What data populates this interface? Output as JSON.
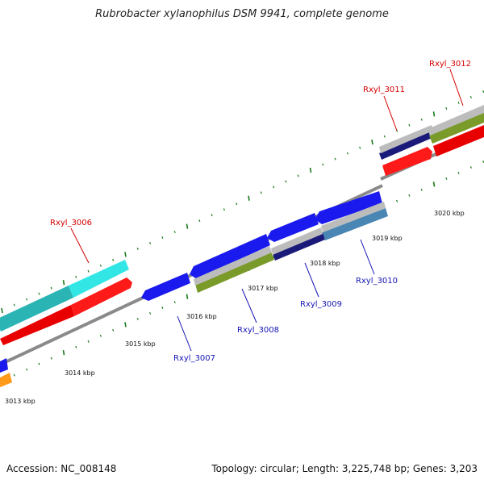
{
  "title": "Rubrobacter xylanophilus DSM 9941, complete genome",
  "footer": {
    "accession": "Accession: NC_008148",
    "stats": "Topology: circular; Length: 3,225,748 bp; Genes: 3,203"
  },
  "colors": {
    "backbone": "#8a8a8a",
    "tick": "#1a7a1a",
    "label_forward": "#d40000",
    "label_reverse": "#1414b4",
    "forward_cds": "#ff1a1a",
    "reverse_cds": "#1a1aee",
    "cyan_feature": "#33e6e6",
    "orange_feature": "#ff9a1a",
    "olive_feature": "#7a9a2a",
    "steel_feature": "#4a86b4",
    "grey_feature": "#bcbcbc",
    "navy_feature": "#1a1a7a"
  },
  "scale": {
    "unit": "kbp",
    "labels": [
      "3013 kbp",
      "3014 kbp",
      "3015 kbp",
      "3016 kbp",
      "3017 kbp",
      "3018 kbp",
      "3019 kbp",
      "3020 kbp"
    ]
  },
  "genes": [
    {
      "name": "Rxyl_3006",
      "strand": "forward"
    },
    {
      "name": "Rxyl_3007",
      "strand": "reverse"
    },
    {
      "name": "Rxyl_3008",
      "strand": "reverse"
    },
    {
      "name": "Rxyl_3009",
      "strand": "reverse"
    },
    {
      "name": "Rxyl_3010",
      "strand": "reverse"
    },
    {
      "name": "Rxyl_3011",
      "strand": "forward"
    },
    {
      "name": "Rxyl_3012",
      "strand": "forward"
    }
  ]
}
